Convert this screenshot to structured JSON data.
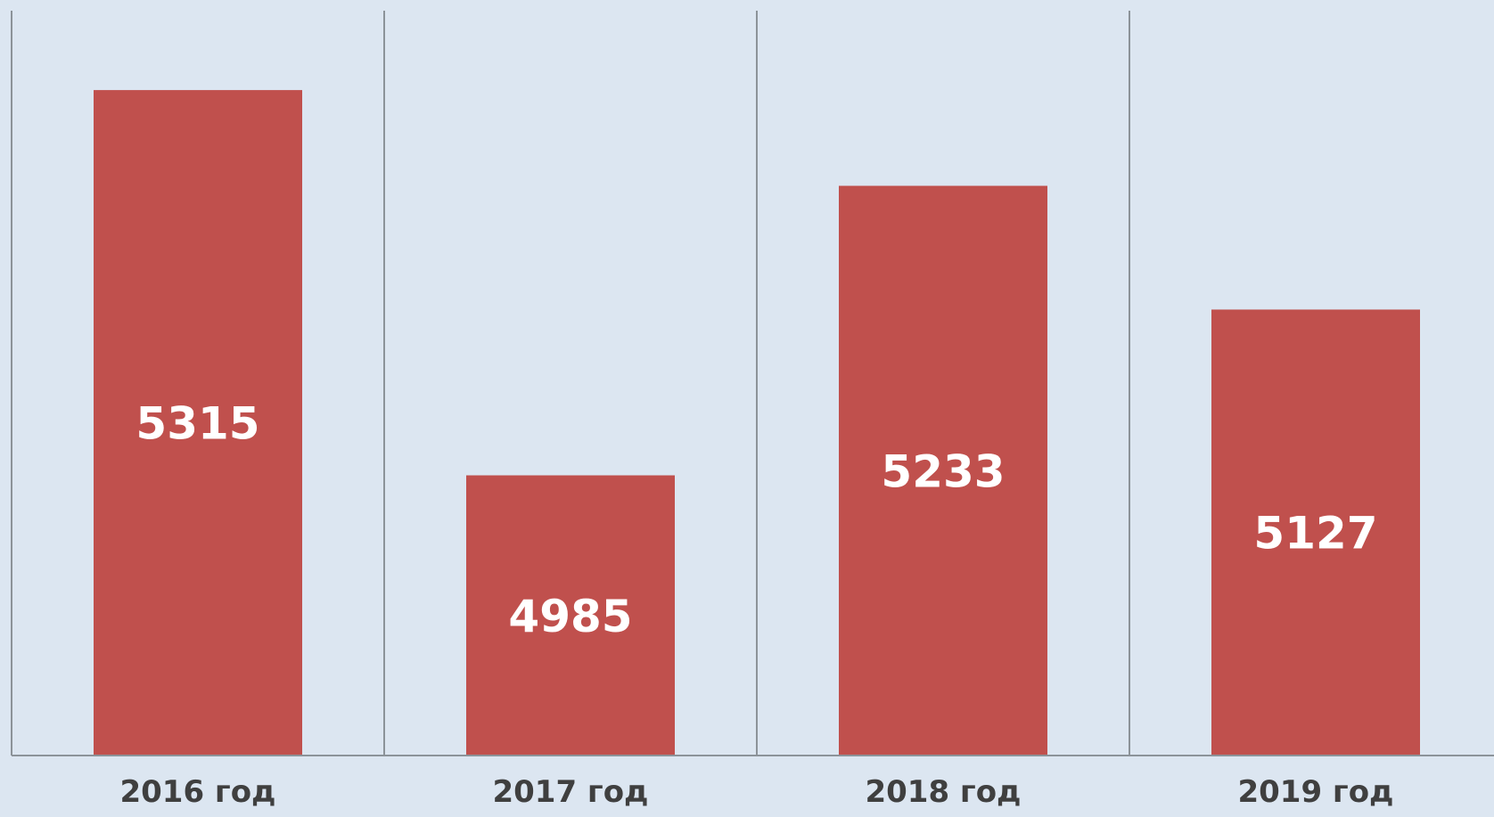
{
  "chart_data": {
    "type": "bar",
    "title": "",
    "xlabel": "",
    "ylabel": "",
    "categories": [
      "2016 год",
      "2017 год",
      "2018 год",
      "2019 год"
    ],
    "values": [
      5315,
      4985,
      5233,
      5127
    ],
    "ylim": [
      4745,
      5383
    ],
    "grid": "vertical category separators",
    "legend": "none",
    "bar_color": "#c0504d",
    "background_color": "#dce6f1",
    "axis_color": "#8c9399",
    "data_label_color": "#ffffff",
    "category_label_color": "#3f3f3f"
  }
}
